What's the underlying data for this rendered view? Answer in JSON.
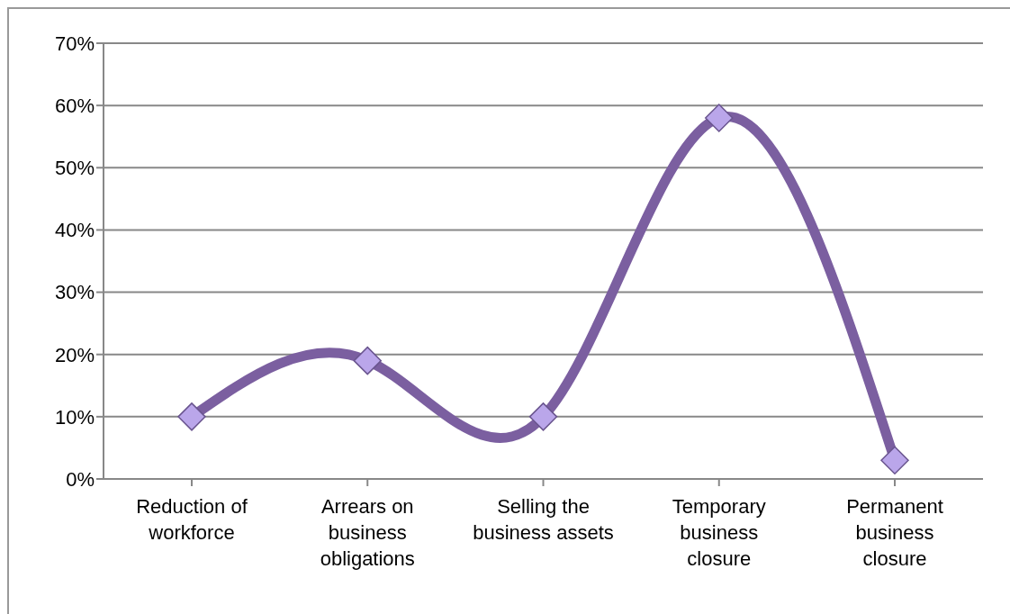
{
  "chart_data": {
    "type": "line",
    "categories": [
      "Reduction of workforce",
      "Arrears on business obligations",
      "Selling the business assets",
      "Temporary business closure",
      "Permanent business closure"
    ],
    "series": [
      {
        "color": "#7b5fa0",
        "values": [
          10,
          19,
          10,
          58,
          3
        ]
      }
    ],
    "ylim": [
      0,
      70
    ],
    "yticks": [
      {
        "value": 0,
        "label": "0%"
      },
      {
        "value": 10,
        "label": "10%"
      },
      {
        "value": 20,
        "label": "20%"
      },
      {
        "value": 30,
        "label": "30%"
      },
      {
        "value": 40,
        "label": "40%"
      },
      {
        "value": 50,
        "label": "50%"
      },
      {
        "value": 60,
        "label": "60%"
      },
      {
        "value": 70,
        "label": "70%"
      }
    ],
    "grid": "y",
    "marker": "diamond",
    "line_style": "solid",
    "legend": false
  }
}
